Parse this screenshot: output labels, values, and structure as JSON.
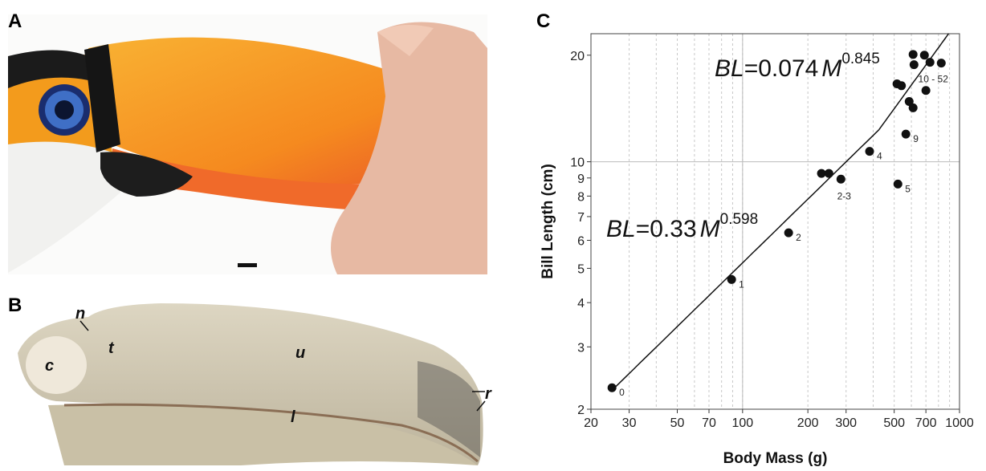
{
  "panels": {
    "a": "A",
    "b": "B",
    "c": "C"
  },
  "specimen_labels": {
    "n": "n",
    "t": "t",
    "c": "c",
    "u": "u",
    "r": "r",
    "l": "l"
  },
  "chart_data": {
    "type": "scatter",
    "xlabel": "Body Mass (g)",
    "ylabel": "Bill Length (cm)",
    "xlog": true,
    "ylog": true,
    "xlim": [
      20,
      1000
    ],
    "ylim": [
      2,
      23
    ],
    "xticks": [
      20,
      30,
      50,
      70,
      100,
      200,
      300,
      500,
      700,
      1000
    ],
    "x_minor_grid": [
      40,
      60,
      80,
      90,
      400,
      600,
      800,
      900
    ],
    "x_major_grid": [
      100
    ],
    "yticks": [
      2,
      3,
      4,
      5,
      6,
      7,
      8,
      9,
      10,
      20
    ],
    "y_major_grid": [
      10
    ],
    "color": "#111111",
    "x": [
      25,
      89,
      163,
      231,
      250,
      284,
      385,
      520,
      566,
      611,
      689,
      617,
      731,
      824,
      515,
      540,
      700,
      586,
      611
    ],
    "values": [
      2.3,
      4.65,
      6.3,
      9.27,
      9.27,
      8.93,
      10.7,
      8.65,
      11.97,
      20.1,
      20.0,
      18.8,
      19.1,
      19.0,
      16.6,
      16.4,
      15.9,
      14.8,
      14.2
    ],
    "point_labels": [
      "0",
      "1",
      "2",
      null,
      null,
      "2-3",
      "4",
      "5",
      "9",
      null,
      null,
      null,
      "10 - 52",
      null,
      null,
      null,
      null,
      null,
      null
    ],
    "fits": [
      {
        "lhs": "BL",
        "operator": "=",
        "coefficient": 0.33,
        "variable": "M",
        "exponent": 0.598
      },
      {
        "lhs": "BL",
        "operator": "=",
        "coefficient": 0.074,
        "variable": "M",
        "exponent": 0.845
      }
    ]
  }
}
